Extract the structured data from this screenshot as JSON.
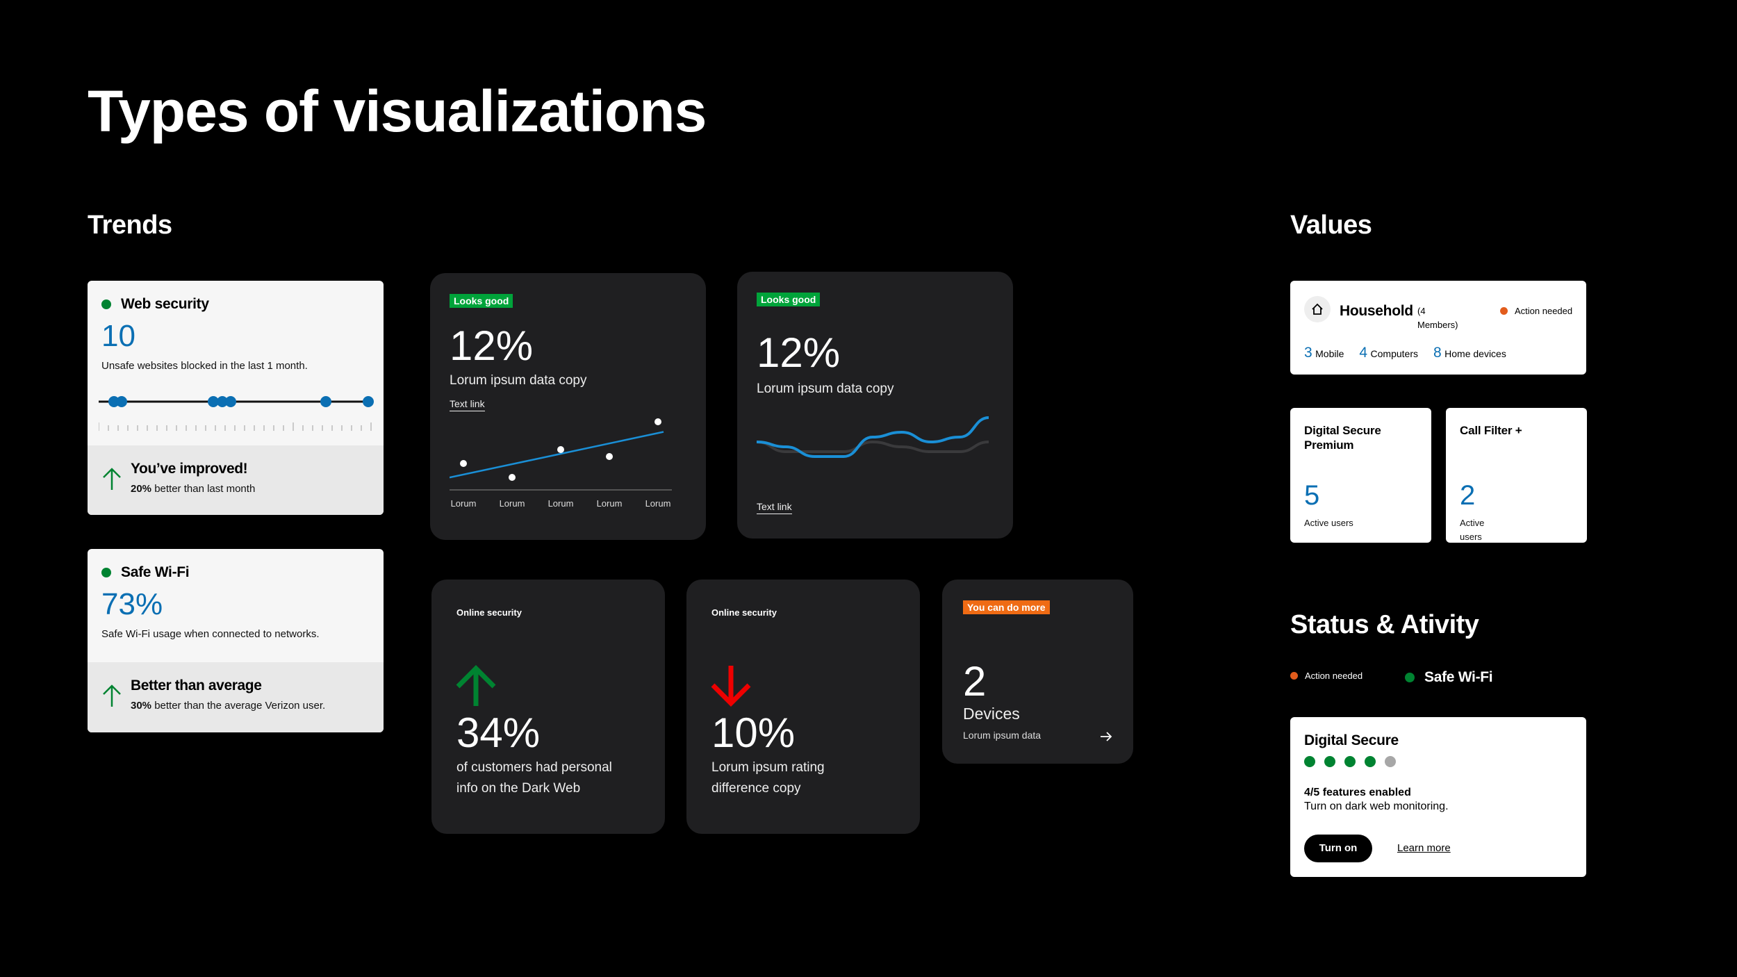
{
  "title": "Types of visualizations",
  "sections": {
    "trends": "Trends",
    "values": "Values",
    "status": "Status & Ativity"
  },
  "web_security": {
    "title": "Web security",
    "value": "10",
    "desc": "Unsafe websites blocked in the last 1 month.",
    "foot_title": "You’ve improved!",
    "foot_bold": "20%",
    "foot_rest": " better than last month",
    "status_color": "#008331"
  },
  "safe_wifi": {
    "title": "Safe Wi-Fi",
    "value": "73%",
    "desc": "Safe Wi-Fi usage when connected to networks.",
    "foot_title": "Better than average",
    "foot_bold": "30%",
    "foot_rest": " better than the average Verizon user."
  },
  "chart_card_1": {
    "badge": "Looks good",
    "value": "12%",
    "desc": "Lorum ipsum data copy",
    "link": "Text link"
  },
  "chart_card_2": {
    "badge": "Looks good",
    "value": "12%",
    "desc": "Lorum ipsum data copy",
    "link": "Text link"
  },
  "chart_data": [
    {
      "type": "scatter",
      "categories": [
        "Lorum",
        "Lorum",
        "Lorum",
        "Lorum",
        "Lorum"
      ],
      "values": [
        3,
        1,
        5,
        4,
        9
      ],
      "trend_line": true,
      "ylim": [
        0,
        10
      ]
    },
    {
      "type": "line",
      "series": [
        {
          "values": [
            5,
            4,
            2,
            2,
            6,
            7,
            5,
            6,
            10
          ]
        },
        {
          "values": [
            5,
            3,
            3,
            3,
            5,
            4,
            3,
            3,
            5
          ]
        }
      ],
      "ylim": [
        0,
        10
      ]
    }
  ],
  "online_1": {
    "label": "Online security",
    "value": "34%",
    "desc_1": "of customers had personal",
    "desc_2": "info on the Dark Web"
  },
  "online_2": {
    "label": "Online security",
    "value": "10%",
    "desc_1": "Lorum ipsum rating",
    "desc_2": "difference copy"
  },
  "devices_card": {
    "badge": "You can do more",
    "value": "2",
    "label": "Devices",
    "desc": "Lorum ipsum data"
  },
  "household": {
    "title": "Household",
    "members": "(4 Members)",
    "action": "Action needed",
    "stats": [
      {
        "num": "3",
        "label": "Mobile"
      },
      {
        "num": "4",
        "label": "Computers"
      },
      {
        "num": "8",
        "label": "Home devices"
      }
    ]
  },
  "dsp": {
    "title_1": "Digital Secure",
    "title_2": "Premium",
    "value": "5",
    "label": "Active users"
  },
  "call_filter": {
    "title": "Call Filter +",
    "value": "2",
    "label_1": "Active",
    "label_2": "users"
  },
  "status_row": {
    "action": "Action needed",
    "wifi": "Safe Wi-Fi"
  },
  "digital_secure": {
    "title": "Digital Secure",
    "features": "4/5 features enabled",
    "desc": "Turn on dark web monitoring.",
    "enabled": 4,
    "total": 5,
    "button": "Turn on",
    "link": "Learn more"
  }
}
